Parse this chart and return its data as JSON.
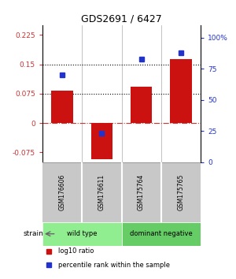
{
  "title": "GDS2691 / 6427",
  "samples": [
    "GSM176606",
    "GSM176611",
    "GSM175764",
    "GSM175765"
  ],
  "log10_ratio": [
    0.083,
    -0.093,
    0.093,
    0.163
  ],
  "percentile_rank": [
    70,
    23,
    83,
    88
  ],
  "groups": [
    {
      "label": "wild type",
      "samples": [
        0,
        1
      ],
      "color": "#90ee90"
    },
    {
      "label": "dominant negative",
      "samples": [
        2,
        3
      ],
      "color": "#66cc66"
    }
  ],
  "bar_color": "#cc1111",
  "dot_color": "#2233cc",
  "ylim_left": [
    -0.1,
    0.25
  ],
  "ylim_right": [
    0,
    110
  ],
  "yticks_left": [
    -0.075,
    0,
    0.075,
    0.15,
    0.225
  ],
  "yticks_right": [
    0,
    25,
    50,
    75,
    100
  ],
  "ytick_labels_right": [
    "0",
    "25",
    "50",
    "75",
    "100%"
  ],
  "hlines": [
    0.075,
    0.15
  ],
  "sample_box_color": "#c8c8c8",
  "strain_label": "strain",
  "legend_items": [
    {
      "color": "#cc1111",
      "label": "log10 ratio"
    },
    {
      "color": "#2233cc",
      "label": "percentile rank within the sample"
    }
  ]
}
